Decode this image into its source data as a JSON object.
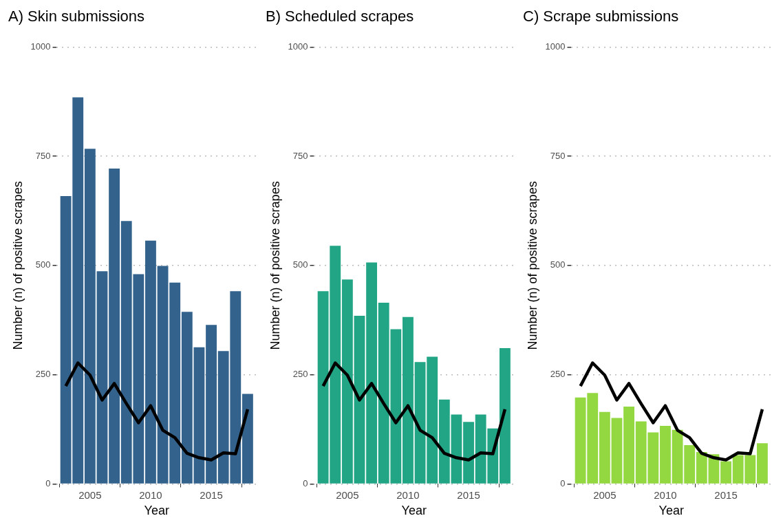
{
  "chart_data": [
    {
      "type": "bar",
      "title": "A) Skin submissions",
      "xlabel": "Year",
      "ylabel": "Number (n) of positive scrapes",
      "x": [
        2003,
        2004,
        2005,
        2006,
        2007,
        2008,
        2009,
        2010,
        2011,
        2012,
        2013,
        2014,
        2015,
        2016,
        2017,
        2018
      ],
      "xlim": [
        2002.2,
        2018.8
      ],
      "xticks": [
        2005,
        2010,
        2015
      ],
      "ylim": [
        0,
        1000
      ],
      "yticks": [
        0,
        250,
        500,
        750,
        1000
      ],
      "grid": "y",
      "legend": false,
      "series": [
        {
          "color": "#33638d",
          "values": [
            659,
            885,
            767,
            487,
            722,
            602,
            480,
            557,
            499,
            461,
            394,
            313,
            364,
            304,
            441,
            206
          ]
        },
        {
          "type": "line",
          "color": "#000000",
          "values": [
            224,
            277,
            249,
            192,
            230,
            184,
            140,
            179,
            123,
            106,
            70,
            60,
            55,
            71,
            69,
            171
          ]
        }
      ]
    },
    {
      "type": "bar",
      "title": "B) Scheduled scrapes",
      "xlabel": "Year",
      "ylabel": "Number (n) of positive scrapes",
      "x": [
        2003,
        2004,
        2005,
        2006,
        2007,
        2008,
        2009,
        2010,
        2011,
        2012,
        2013,
        2014,
        2015,
        2016,
        2017,
        2018
      ],
      "xlim": [
        2002.2,
        2018.8
      ],
      "xticks": [
        2005,
        2010,
        2015
      ],
      "ylim": [
        0,
        1000
      ],
      "yticks": [
        0,
        250,
        500,
        750,
        1000
      ],
      "grid": "y",
      "legend": false,
      "series": [
        {
          "color": "#21a585",
          "values": [
            441,
            545,
            468,
            385,
            507,
            415,
            354,
            382,
            279,
            291,
            193,
            159,
            142,
            159,
            127,
            311
          ]
        },
        {
          "type": "line",
          "color": "#000000",
          "values": [
            224,
            277,
            249,
            192,
            230,
            184,
            140,
            179,
            123,
            106,
            70,
            60,
            55,
            71,
            69,
            171
          ]
        }
      ]
    },
    {
      "type": "bar",
      "title": "C) Scrape submissions",
      "xlabel": "Year",
      "ylabel": "Number (n) of positive scrapes",
      "x": [
        2003,
        2004,
        2005,
        2006,
        2007,
        2008,
        2009,
        2010,
        2011,
        2012,
        2013,
        2014,
        2015,
        2016,
        2017,
        2018
      ],
      "xlim": [
        2002.2,
        2018.8
      ],
      "xticks": [
        2005,
        2010,
        2015
      ],
      "ylim": [
        0,
        1000
      ],
      "yticks": [
        0,
        250,
        500,
        750,
        1000
      ],
      "grid": "y",
      "legend": false,
      "series": [
        {
          "color": "#93d741",
          "values": [
            198,
            208,
            165,
            151,
            177,
            143,
            118,
            133,
            124,
            89,
            73,
            68,
            52,
            66,
            66,
            93
          ]
        },
        {
          "type": "line",
          "color": "#000000",
          "values": [
            224,
            277,
            249,
            192,
            230,
            184,
            140,
            179,
            123,
            106,
            70,
            60,
            55,
            71,
            69,
            171
          ]
        }
      ]
    }
  ]
}
